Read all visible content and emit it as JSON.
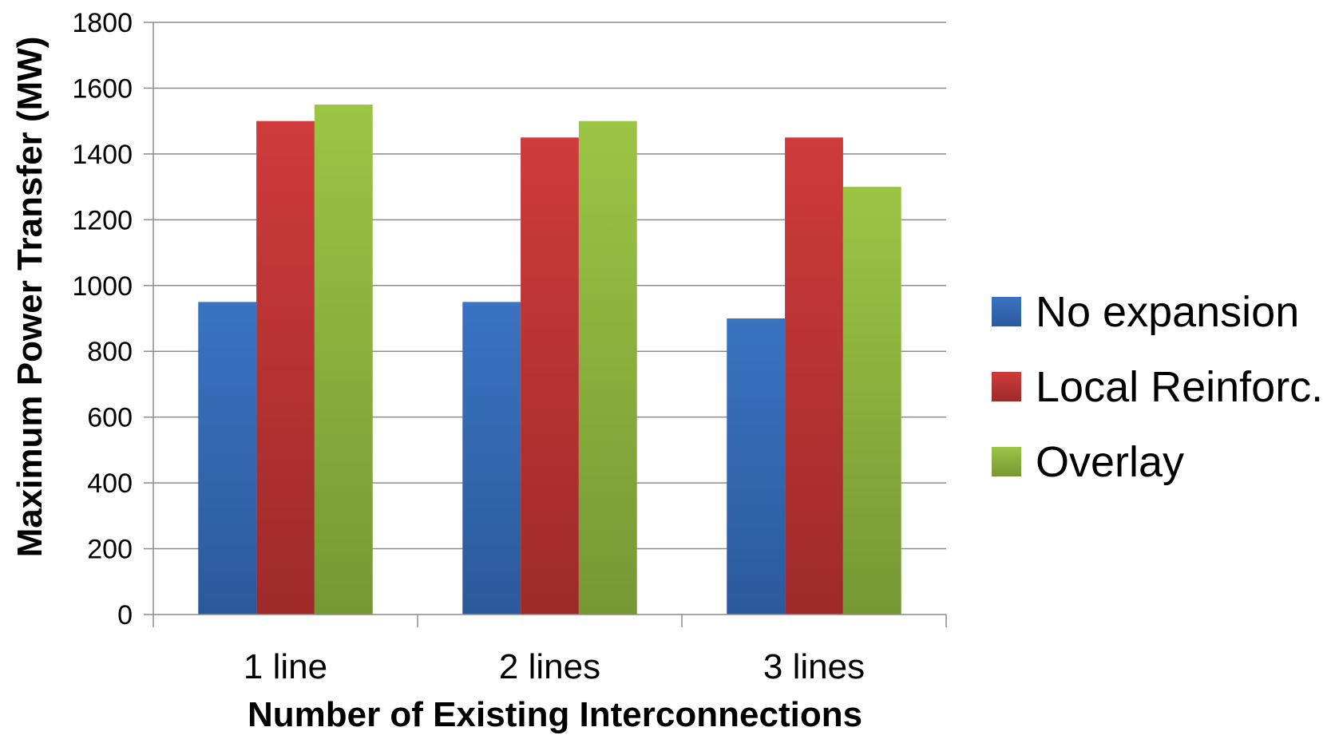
{
  "chart_data": {
    "type": "bar",
    "xlabel": "Number of Existing Interconnections",
    "ylabel": "Maximum  Power Transfer (MW)",
    "categories": [
      "1 line",
      "2 lines",
      "3 lines"
    ],
    "series": [
      {
        "name": "No expansion",
        "values": [
          950,
          950,
          900
        ],
        "color": "#3a73c2",
        "color_dark": "#2b5a9b"
      },
      {
        "name": "Local Reinforc.",
        "values": [
          1500,
          1450,
          1450
        ],
        "color": "#cf3b3b",
        "color_dark": "#9e2a2a"
      },
      {
        "name": "Overlay",
        "values": [
          1550,
          1500,
          1300
        ],
        "color": "#9cc545",
        "color_dark": "#769834"
      }
    ],
    "ylim": [
      0,
      1800
    ],
    "yticks": [
      0,
      200,
      400,
      600,
      800,
      1000,
      1200,
      1400,
      1600,
      1800
    ],
    "grid": true,
    "legend": "right"
  }
}
